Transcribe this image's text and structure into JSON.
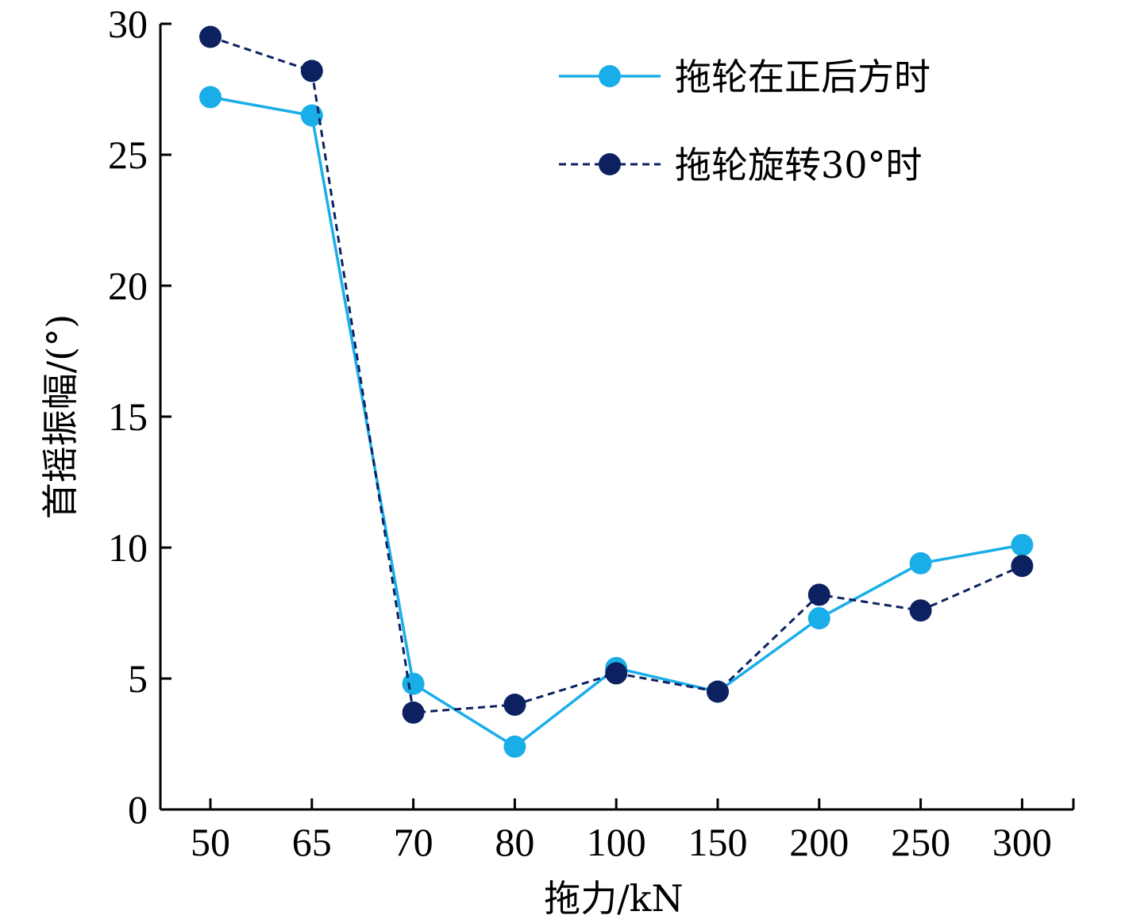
{
  "chart_data": {
    "type": "line",
    "title": "",
    "xlabel": "拖力/kN",
    "ylabel": "首摇振幅/(°)",
    "categories": [
      "50",
      "65",
      "70",
      "80",
      "100",
      "150",
      "200",
      "250",
      "300"
    ],
    "yticks": [
      "0",
      "5",
      "10",
      "15",
      "20",
      "25",
      "30"
    ],
    "ylim": [
      0,
      30
    ],
    "grid": false,
    "legend_position": "top-right",
    "series": [
      {
        "name": "拖轮在正后方时",
        "color": "#1aaee8",
        "line_style": "solid",
        "values": [
          27.2,
          26.5,
          4.8,
          2.4,
          5.4,
          4.5,
          7.3,
          9.4,
          10.1
        ]
      },
      {
        "name": "拖轮旋转30°时",
        "color": "#0d2160",
        "line_style": "dashed",
        "values": [
          29.5,
          28.2,
          3.7,
          4.0,
          5.2,
          4.5,
          8.2,
          7.6,
          9.3
        ]
      }
    ]
  }
}
